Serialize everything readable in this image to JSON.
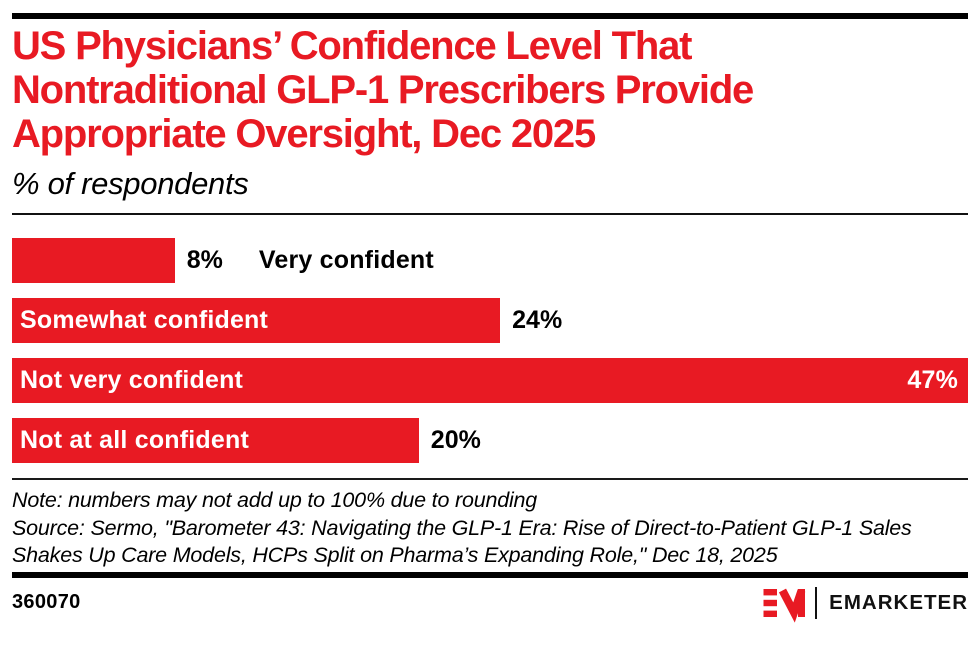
{
  "header": {
    "title_lines": [
      "US Physicians’ Confidence Level That",
      "Nontraditional GLP-1 Prescribers Provide",
      "Appropriate Oversight, Dec 2025"
    ],
    "subtitle": "% of respondents"
  },
  "chart_data": {
    "type": "bar",
    "orientation": "horizontal",
    "title": "US Physicians’ Confidence Level That Nontraditional GLP-1 Prescribers Provide Appropriate Oversight, Dec 2025",
    "subtitle": "% of respondents",
    "unit": "%",
    "categories": [
      "Very confident",
      "Somewhat confident",
      "Not very confident",
      "Not at all confident"
    ],
    "values": [
      8,
      24,
      47,
      20
    ],
    "xlim": [
      0,
      47
    ],
    "grid": false,
    "legend": "none",
    "bar_color": "#e81a23",
    "bars": [
      {
        "label": "Very confident",
        "value": 8,
        "display": "8%",
        "label_position": "outside",
        "value_position": "outside"
      },
      {
        "label": "Somewhat confident",
        "value": 24,
        "display": "24%",
        "label_position": "inside",
        "value_position": "outside"
      },
      {
        "label": "Not very confident",
        "value": 47,
        "display": "47%",
        "label_position": "inside",
        "value_position": "inside"
      },
      {
        "label": "Not at all confident",
        "value": 20,
        "display": "20%",
        "label_position": "inside",
        "value_position": "outside"
      }
    ]
  },
  "footer": {
    "note": "Note: numbers may not add up to 100% due to rounding",
    "source": "Source: Sermo, \"Barometer 43: Navigating the GLP-1 Era: Rise of Direct-to-Patient GLP-1 Sales Shakes Up Care Models, HCPs Split on Pharma’s Expanding Role,\" Dec 18, 2025",
    "chart_id": "360070",
    "brand": "EMARKETER"
  },
  "colors": {
    "accent_red": "#e81a23",
    "black": "#000000",
    "white": "#ffffff"
  }
}
